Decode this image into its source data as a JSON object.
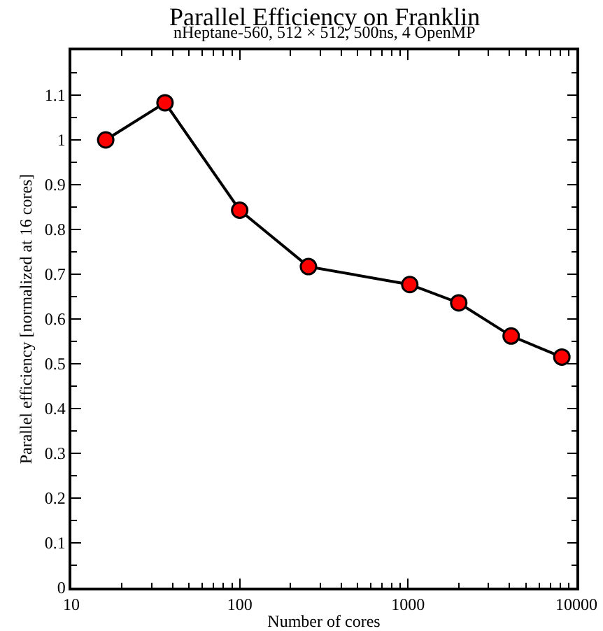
{
  "chart_data": {
    "type": "line",
    "title": "Parallel Efficiency on Franklin",
    "subtitle": "nHeptane-560, 512 × 512, 500ns, 4 OpenMP",
    "xlabel": "Number of cores",
    "ylabel": "Parallel efficiency [normalized at 16 cores]",
    "x": [
      16,
      36,
      100,
      256,
      1024,
      2000,
      4096,
      8192
    ],
    "series": [
      {
        "color": "#ff0000",
        "values": [
          1.0,
          1.083,
          0.843,
          0.717,
          0.677,
          0.636,
          0.562,
          0.515
        ]
      }
    ],
    "log": "x",
    "xlim": [
      10,
      10000
    ],
    "xticks": [
      10,
      100,
      1000,
      10000
    ],
    "ylim": [
      0,
      1.2
    ],
    "yticks": [
      0,
      0.1,
      0.2,
      0.3,
      0.4,
      0.5,
      0.6,
      0.7,
      0.8,
      0.9,
      {
        "value": 1,
        "label": "1"
      },
      1.1
    ],
    "marker": "circle",
    "line_style": "solid",
    "grid": false,
    "legend": false
  }
}
